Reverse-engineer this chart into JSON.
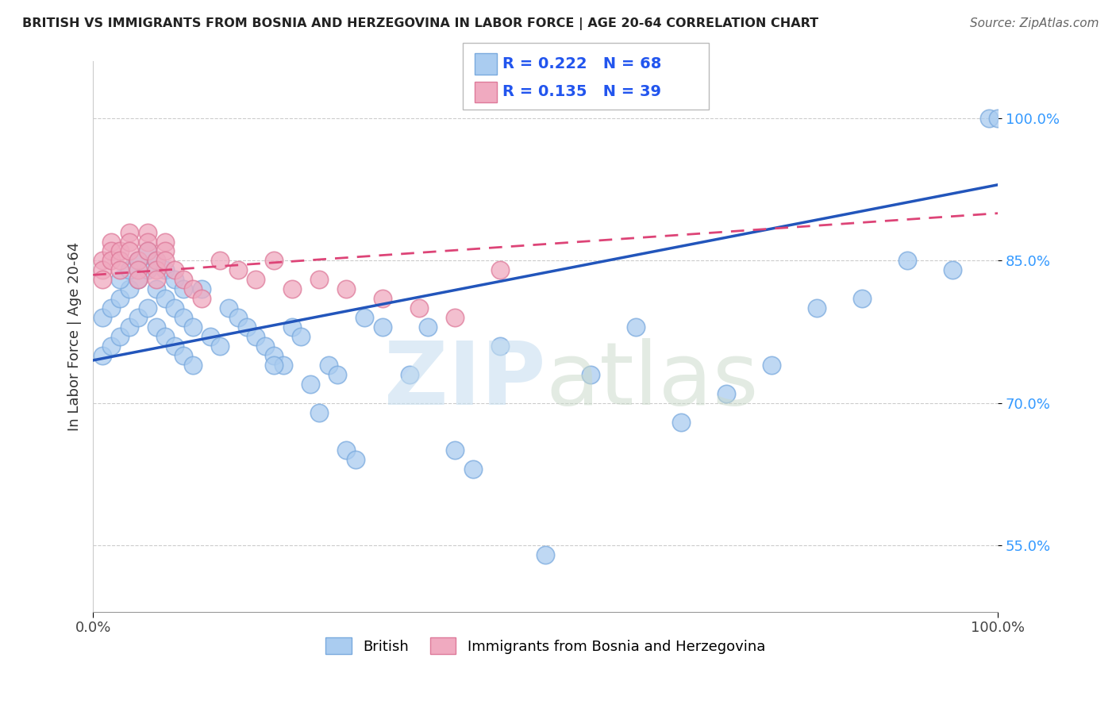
{
  "title": "BRITISH VS IMMIGRANTS FROM BOSNIA AND HERZEGOVINA IN LABOR FORCE | AGE 20-64 CORRELATION CHART",
  "source": "Source: ZipAtlas.com",
  "ylabel": "In Labor Force | Age 20-64",
  "xlim": [
    0,
    100
  ],
  "ylim": [
    48,
    106
  ],
  "yticks": [
    55,
    70,
    85,
    100
  ],
  "ytick_labels": [
    "55.0%",
    "70.0%",
    "85.0%",
    "100.0%"
  ],
  "xtick_labels": [
    "0.0%",
    "100.0%"
  ],
  "british_R": 0.222,
  "british_N": 68,
  "bosnia_R": 0.135,
  "bosnia_N": 39,
  "british_color": "#aaccf0",
  "british_edge_color": "#7aaade",
  "bosnia_color": "#f0aac0",
  "bosnia_edge_color": "#de7a9a",
  "british_line_color": "#2255bb",
  "bosnia_line_color": "#dd4477",
  "watermark_zip_color": "#c8dff0",
  "watermark_atlas_color": "#c8d8c8",
  "british_x": [
    1,
    1,
    2,
    2,
    3,
    3,
    4,
    4,
    5,
    5,
    6,
    6,
    7,
    7,
    8,
    8,
    9,
    9,
    10,
    10,
    11,
    11,
    12,
    13,
    14,
    15,
    16,
    17,
    18,
    19,
    20,
    21,
    22,
    23,
    24,
    25,
    26,
    27,
    28,
    29,
    30,
    32,
    35,
    37,
    40,
    42,
    45,
    50,
    55,
    60,
    65,
    70,
    75,
    80,
    85,
    90,
    95,
    99,
    3,
    4,
    5,
    6,
    7,
    8,
    9,
    10,
    20,
    100
  ],
  "british_y": [
    79,
    75,
    80,
    76,
    81,
    77,
    82,
    78,
    83,
    79,
    84,
    80,
    82,
    78,
    81,
    77,
    80,
    76,
    79,
    75,
    78,
    74,
    82,
    77,
    76,
    80,
    79,
    78,
    77,
    76,
    75,
    74,
    78,
    77,
    72,
    69,
    74,
    73,
    65,
    64,
    79,
    78,
    73,
    78,
    65,
    63,
    76,
    54,
    73,
    78,
    68,
    71,
    74,
    80,
    81,
    85,
    84,
    100,
    83,
    84,
    85,
    86,
    85,
    84,
    83,
    82,
    74,
    100
  ],
  "bosnia_x": [
    1,
    1,
    1,
    2,
    2,
    2,
    3,
    3,
    3,
    4,
    4,
    4,
    5,
    5,
    5,
    6,
    6,
    6,
    7,
    7,
    7,
    8,
    8,
    8,
    9,
    10,
    11,
    12,
    14,
    16,
    18,
    20,
    22,
    25,
    28,
    32,
    36,
    40,
    45
  ],
  "bosnia_y": [
    85,
    84,
    83,
    87,
    86,
    85,
    86,
    85,
    84,
    88,
    87,
    86,
    85,
    84,
    83,
    88,
    87,
    86,
    85,
    84,
    83,
    87,
    86,
    85,
    84,
    83,
    82,
    81,
    85,
    84,
    83,
    85,
    82,
    83,
    82,
    81,
    80,
    79,
    84
  ]
}
